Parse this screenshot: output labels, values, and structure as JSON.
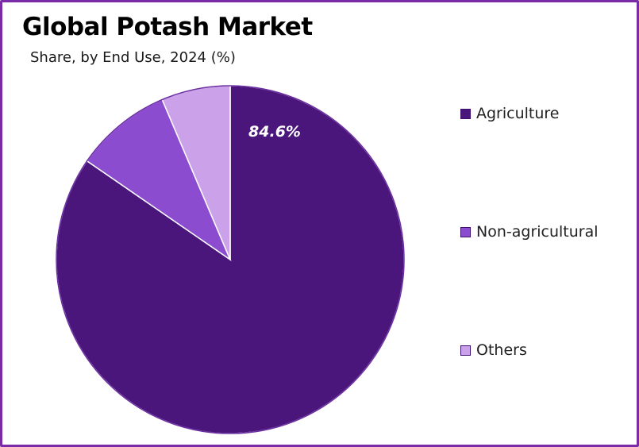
{
  "chart_data": {
    "type": "pie",
    "title": "Global Potash Market",
    "subtitle": "Share, by End Use, 2024 (%)",
    "legend_position": "right",
    "categories": [
      "Agriculture",
      "Non-agricultural",
      "Others"
    ],
    "values": [
      84.6,
      9.0,
      6.4
    ],
    "colors": [
      "#4b167b",
      "#8b4ccf",
      "#cba2ea"
    ],
    "data_labels": [
      "84.6%",
      "",
      ""
    ]
  }
}
